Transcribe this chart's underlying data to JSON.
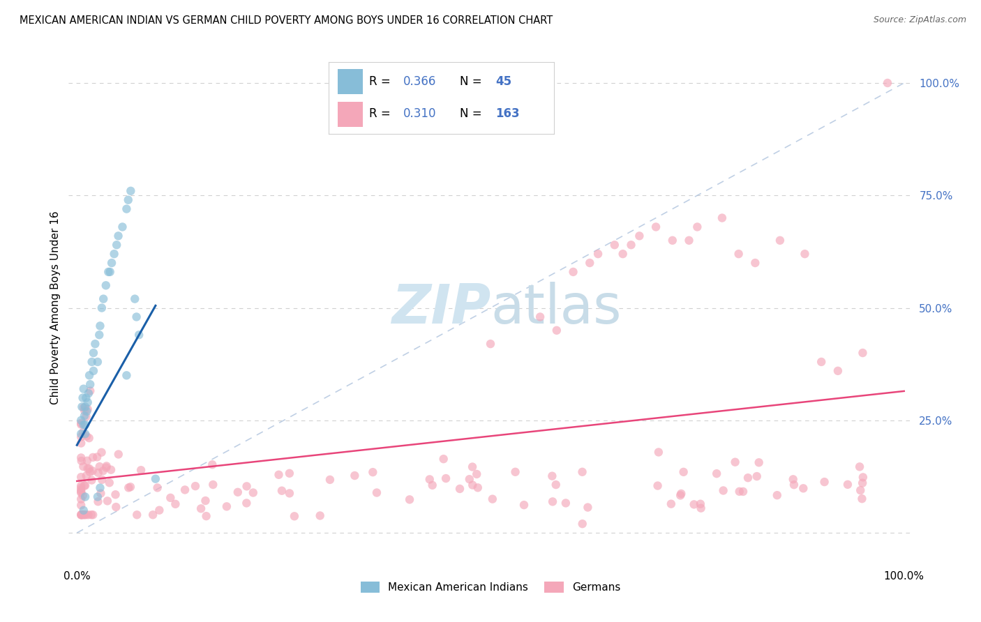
{
  "title": "MEXICAN AMERICAN INDIAN VS GERMAN CHILD POVERTY AMONG BOYS UNDER 16 CORRELATION CHART",
  "source": "Source: ZipAtlas.com",
  "ylabel": "Child Poverty Among Boys Under 16",
  "legend_r_blue": "0.366",
  "legend_n_blue": "45",
  "legend_r_pink": "0.310",
  "legend_n_pink": "163",
  "blue_color": "#87bdd8",
  "pink_color": "#f4a7b9",
  "blue_line_color": "#1a5fa8",
  "pink_line_color": "#e8457a",
  "diagonal_color": "#b0c4de",
  "watermark_zip": "ZIP",
  "watermark_atlas": "atlas",
  "watermark_color": "#d0e4f0",
  "background_color": "#ffffff",
  "grid_color": "#d0d0d0",
  "right_tick_color": "#4472c4"
}
